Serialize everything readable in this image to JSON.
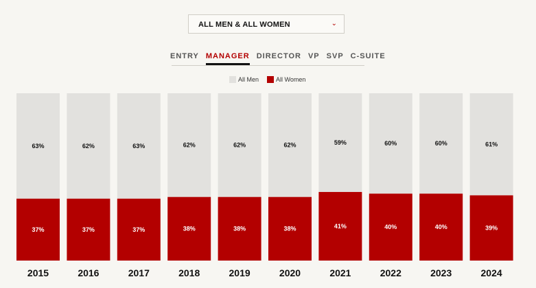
{
  "dropdown": {
    "label": "ALL MEN & ALL WOMEN",
    "chevron_icon": "chevron-down-icon"
  },
  "tabs": [
    {
      "label": "ENTRY",
      "active": false
    },
    {
      "label": "MANAGER",
      "active": true
    },
    {
      "label": "DIRECTOR",
      "active": false
    },
    {
      "label": "VP",
      "active": false
    },
    {
      "label": "SVP",
      "active": false
    },
    {
      "label": "C-SUITE",
      "active": false
    }
  ],
  "colors": {
    "men": "#e2e1de",
    "women": "#b30000",
    "accent": "#b30000"
  },
  "chart_data": {
    "type": "bar",
    "stacked": true,
    "categories": [
      "2015",
      "2016",
      "2017",
      "2018",
      "2019",
      "2020",
      "2021",
      "2022",
      "2023",
      "2024"
    ],
    "series": [
      {
        "name": "All Men",
        "values": [
          63,
          62,
          63,
          62,
          62,
          62,
          59,
          60,
          60,
          61
        ],
        "labels": [
          "63%",
          "62%",
          "63%",
          "62%",
          "62%",
          "62%",
          "59%",
          "60%",
          "60%",
          "61%"
        ]
      },
      {
        "name": "All Women",
        "values": [
          37,
          37,
          37,
          38,
          38,
          38,
          41,
          40,
          40,
          39
        ],
        "labels": [
          "37%",
          "37%",
          "37%",
          "38%",
          "38%",
          "38%",
          "41%",
          "40%",
          "40%",
          "39%"
        ]
      }
    ],
    "ylim": [
      0,
      100
    ],
    "legend_position": "top-center",
    "grid": false
  }
}
